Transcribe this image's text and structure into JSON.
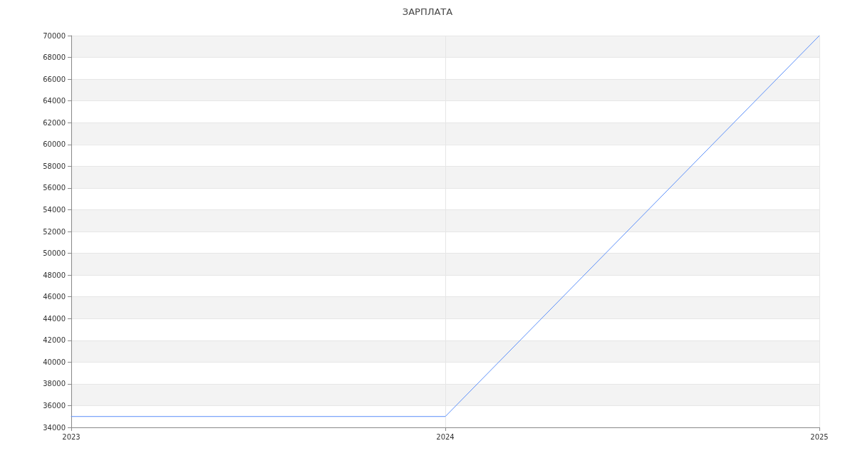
{
  "chart_data": {
    "type": "line",
    "title": "ЗАРПЛАТА",
    "categories": [
      "2023",
      "2024",
      "2025"
    ],
    "series": [
      {
        "color": "#5b8ff9",
        "values": [
          35000,
          35000,
          70000
        ]
      }
    ],
    "ylim": [
      34000,
      70000
    ],
    "yticks": [
      34000,
      36000,
      38000,
      40000,
      42000,
      44000,
      46000,
      48000,
      50000,
      52000,
      54000,
      56000,
      58000,
      60000,
      62000,
      64000,
      66000,
      68000,
      70000
    ],
    "grid": true,
    "marker": "none",
    "line_style": "solid"
  }
}
